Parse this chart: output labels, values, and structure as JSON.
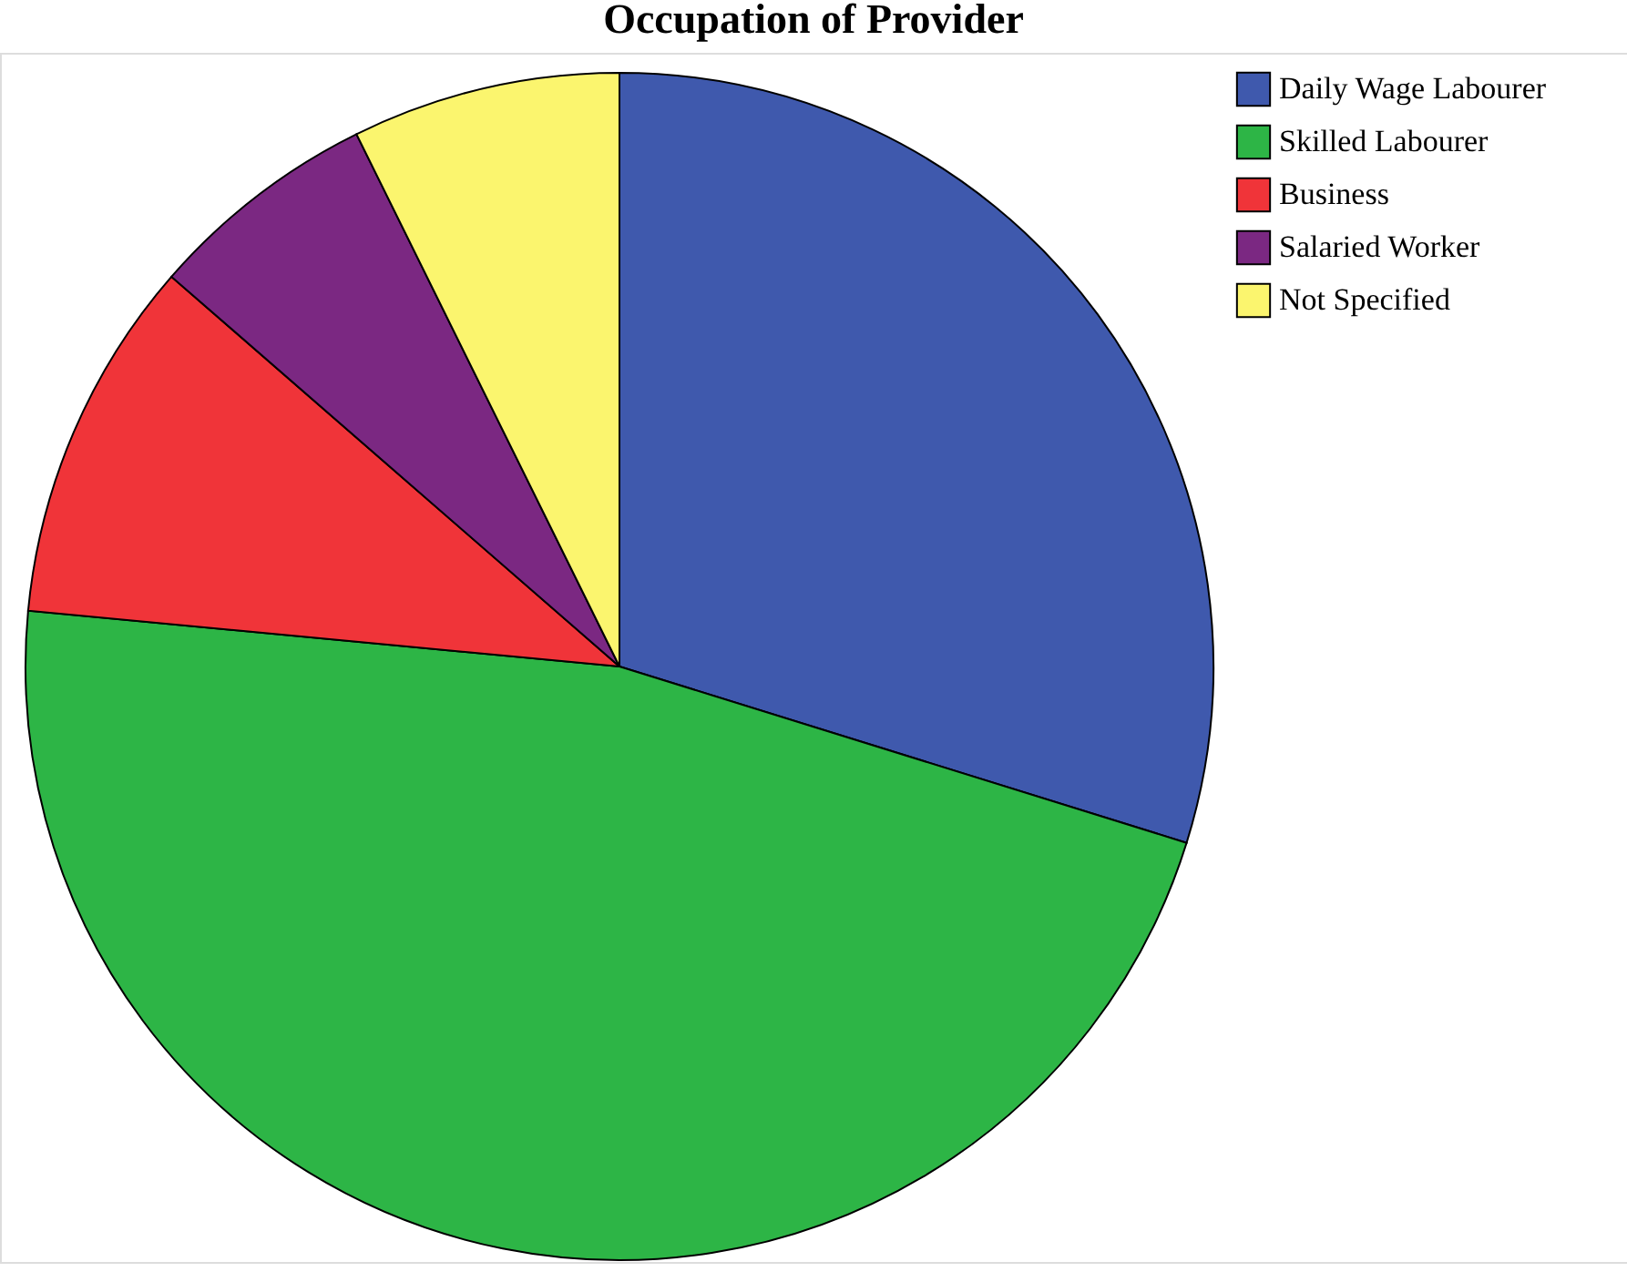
{
  "chart_data": {
    "type": "pie",
    "title": "Occupation of Provider",
    "categories": [
      "Daily Wage Labourer",
      "Skilled Labourer",
      "Business",
      "Salaried Worker",
      "Not Specified"
    ],
    "values": [
      29.8,
      46.7,
      9.9,
      6.3,
      7.3
    ],
    "colors": [
      "#3f59ad",
      "#2db546",
      "#f03439",
      "#7b2882",
      "#fbf56e"
    ],
    "legend": "top right"
  }
}
